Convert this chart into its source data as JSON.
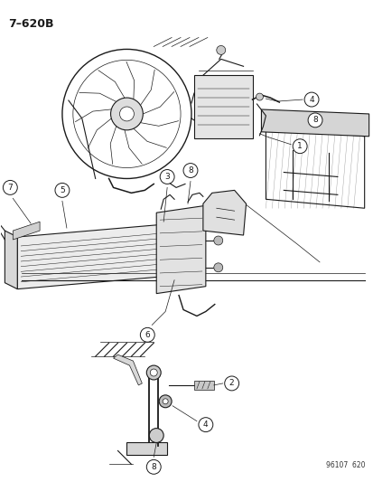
{
  "title": "7–620B",
  "footer": "96107  620",
  "background_color": "#ffffff",
  "line_color": "#1a1a1a",
  "figsize": [
    4.14,
    5.33
  ],
  "dpi": 100
}
